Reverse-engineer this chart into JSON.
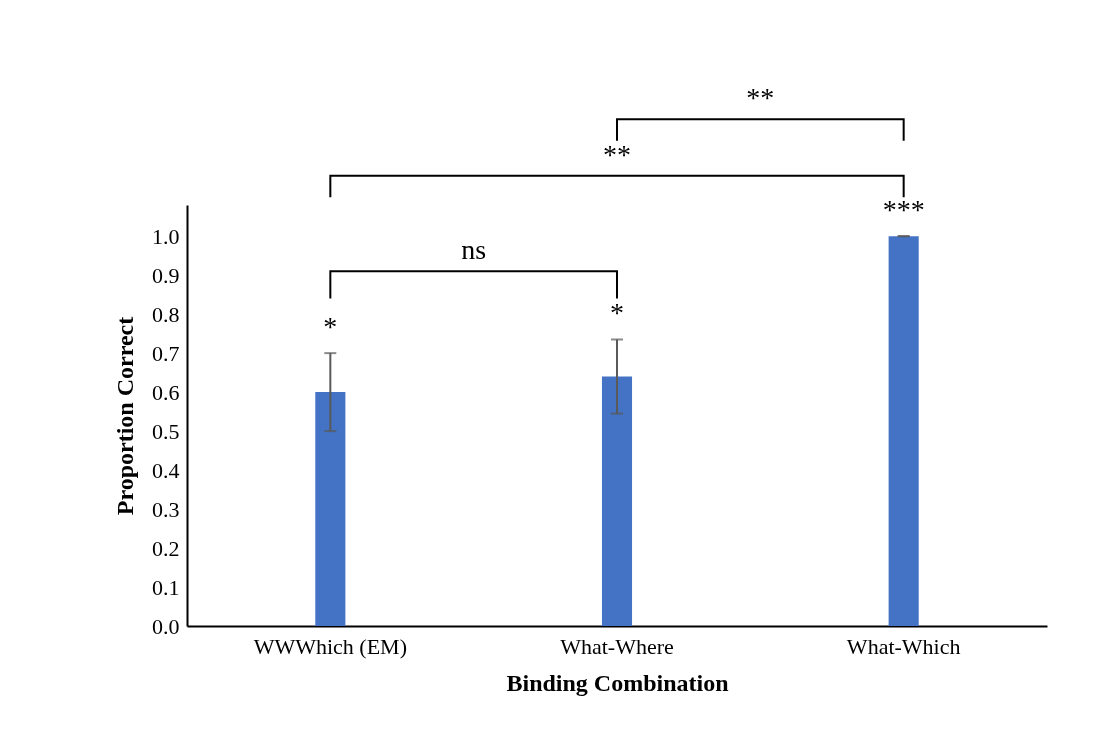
{
  "chart_data": {
    "type": "bar",
    "xlabel": "Binding Combination",
    "ylabel": "Proportion Correct",
    "categories": [
      "WWWhich (EM)",
      "What-Where",
      "What-Which"
    ],
    "values": [
      0.6,
      0.64,
      1.0
    ],
    "color": "#4472c4",
    "errors": [
      [
        0.5,
        0.7
      ],
      [
        0.545,
        0.735
      ],
      0
    ],
    "ylim": [
      0,
      1.08
    ],
    "yticks": [
      {
        "value": 0,
        "label": "0.0"
      },
      {
        "value": 0.1,
        "label": "0.1"
      },
      {
        "value": 0.2,
        "label": "0.2"
      },
      {
        "value": 0.3,
        "label": "0.3"
      },
      {
        "value": 0.4,
        "label": "0.4"
      },
      {
        "value": 0.5,
        "label": "0.5"
      },
      {
        "value": 0.6,
        "label": "0.6"
      },
      {
        "value": 0.7,
        "label": "0.7"
      },
      {
        "value": 0.8,
        "label": "0.8"
      },
      {
        "value": 0.9,
        "label": "0.9"
      },
      {
        "value": 1.0,
        "label": "1.0"
      }
    ],
    "grid": false,
    "annotations": [
      "*",
      "*",
      "***",
      "ns",
      "**",
      "**"
    ]
  }
}
